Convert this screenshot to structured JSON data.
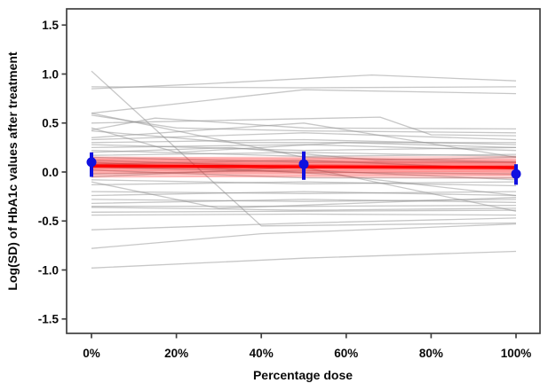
{
  "chart_data": {
    "type": "line",
    "title": "",
    "xlabel": "Percentage dose",
    "ylabel": "Log(SD) of HbA1c values after treatment",
    "x_ticks": [
      {
        "pct": 0,
        "label": "0%"
      },
      {
        "pct": 20,
        "label": "20%"
      },
      {
        "pct": 40,
        "label": "40%"
      },
      {
        "pct": 60,
        "label": "60%"
      },
      {
        "pct": 80,
        "label": "80%"
      },
      {
        "pct": 100,
        "label": "100%"
      }
    ],
    "y_ticks": [
      {
        "v": 1.5,
        "label": "1.5"
      },
      {
        "v": 1.0,
        "label": "1.0"
      },
      {
        "v": 0.5,
        "label": "0.5"
      },
      {
        "v": 0.0,
        "label": "0.0"
      },
      {
        "v": -0.5,
        "label": "-0.5"
      },
      {
        "v": -1.0,
        "label": "-1.0"
      },
      {
        "v": -1.5,
        "label": "-1.5"
      }
    ],
    "xlim_pct": [
      -5.9,
      105.6
    ],
    "ylim": [
      -1.66,
      1.66
    ],
    "grid": false,
    "legend": null,
    "colors": {
      "study_line": "#909090",
      "fit_ensemble": "#ff0000",
      "fit_center": "#ff0000",
      "summary_point": "#1010e0",
      "axis": "#404040",
      "text": "#0a0a0a",
      "background": "#ffffff"
    },
    "series": {
      "gray_study_lines": [
        [
          [
            0,
            1.03
          ],
          [
            40,
            -0.55
          ],
          [
            100,
            -0.52
          ]
        ],
        [
          [
            0,
            0.85
          ],
          [
            27,
            0.9
          ],
          [
            66,
            0.99
          ],
          [
            100,
            0.93
          ]
        ],
        [
          [
            0,
            0.87
          ],
          [
            50,
            0.86
          ],
          [
            100,
            0.87
          ]
        ],
        [
          [
            0,
            0.6
          ],
          [
            50,
            0.84
          ],
          [
            100,
            0.8
          ]
        ],
        [
          [
            0,
            0.58
          ],
          [
            20,
            0.45
          ],
          [
            50,
            0.42
          ],
          [
            100,
            0.4
          ]
        ],
        [
          [
            0,
            0.5
          ],
          [
            68,
            0.56
          ],
          [
            80,
            0.38
          ],
          [
            100,
            0.37
          ]
        ],
        [
          [
            0,
            0.35
          ],
          [
            50,
            0.5
          ],
          [
            100,
            0.15
          ]
        ],
        [
          [
            0,
            0.43
          ],
          [
            15,
            0.55
          ],
          [
            50,
            0.45
          ],
          [
            100,
            0.44
          ]
        ],
        [
          [
            0,
            0.6
          ],
          [
            50,
            0.15
          ],
          [
            100,
            0.1
          ]
        ],
        [
          [
            0,
            0.42
          ],
          [
            33,
            0.3
          ],
          [
            100,
            0.3
          ]
        ],
        [
          [
            0,
            0.33
          ],
          [
            50,
            0.4
          ],
          [
            100,
            0.33
          ]
        ],
        [
          [
            0,
            0.3
          ],
          [
            50,
            0.33
          ],
          [
            100,
            0.28
          ]
        ],
        [
          [
            0,
            0.28
          ],
          [
            50,
            0.22
          ],
          [
            100,
            0.25
          ]
        ],
        [
          [
            0,
            0.25
          ],
          [
            50,
            0.28
          ],
          [
            100,
            0.22
          ]
        ],
        [
          [
            0,
            0.22
          ],
          [
            50,
            0.16
          ],
          [
            100,
            0.18
          ]
        ],
        [
          [
            0,
            0.2
          ],
          [
            33,
            0.25
          ],
          [
            67,
            0.12
          ],
          [
            100,
            0.15
          ]
        ],
        [
          [
            0,
            0.17
          ],
          [
            50,
            0.2
          ],
          [
            100,
            0.16
          ]
        ],
        [
          [
            0,
            0.15
          ],
          [
            50,
            0.1
          ],
          [
            100,
            0.1
          ]
        ],
        [
          [
            0,
            0.12
          ],
          [
            50,
            0.05
          ],
          [
            100,
            0.06
          ]
        ],
        [
          [
            0,
            0.08
          ],
          [
            50,
            0.12
          ],
          [
            100,
            0.03
          ]
        ],
        [
          [
            0,
            0.05
          ],
          [
            50,
            0.0
          ],
          [
            100,
            -0.02
          ]
        ],
        [
          [
            0,
            0.02
          ],
          [
            50,
            -0.06
          ],
          [
            100,
            -0.06
          ]
        ],
        [
          [
            0,
            -0.02
          ],
          [
            50,
            0.02
          ],
          [
            100,
            -0.08
          ]
        ],
        [
          [
            0,
            -0.05
          ],
          [
            50,
            0.05
          ],
          [
            100,
            -0.4
          ]
        ],
        [
          [
            0,
            0.1
          ],
          [
            55,
            -0.02
          ],
          [
            100,
            -0.24
          ]
        ],
        [
          [
            0,
            -0.08
          ],
          [
            50,
            -0.12
          ],
          [
            100,
            -0.1
          ]
        ],
        [
          [
            0,
            -0.1
          ],
          [
            30,
            -0.37
          ],
          [
            100,
            -0.26
          ]
        ],
        [
          [
            0,
            -0.13
          ],
          [
            50,
            -0.1
          ],
          [
            100,
            -0.14
          ]
        ],
        [
          [
            0,
            -0.2
          ],
          [
            50,
            -0.22
          ],
          [
            100,
            -0.2
          ]
        ],
        [
          [
            0,
            -0.24
          ],
          [
            50,
            -0.2
          ],
          [
            100,
            -0.24
          ]
        ],
        [
          [
            0,
            -0.28
          ],
          [
            50,
            -0.3
          ],
          [
            100,
            -0.28
          ]
        ],
        [
          [
            0,
            -0.32
          ],
          [
            50,
            -0.28
          ],
          [
            100,
            -0.31
          ]
        ],
        [
          [
            0,
            -0.35
          ],
          [
            50,
            -0.35
          ],
          [
            100,
            -0.34
          ]
        ],
        [
          [
            0,
            -0.36
          ],
          [
            50,
            -0.39
          ],
          [
            100,
            -0.37
          ]
        ],
        [
          [
            0,
            -0.41
          ],
          [
            50,
            -0.4
          ],
          [
            100,
            -0.39
          ]
        ],
        [
          [
            0,
            -0.44
          ],
          [
            50,
            -0.43
          ],
          [
            100,
            -0.44
          ]
        ],
        [
          [
            0,
            -0.59
          ],
          [
            50,
            -0.52
          ],
          [
            100,
            -0.47
          ]
        ],
        [
          [
            0,
            -0.78
          ],
          [
            40,
            -0.63
          ],
          [
            100,
            -0.53
          ]
        ],
        [
          [
            0,
            -0.98
          ],
          [
            50,
            -0.88
          ],
          [
            100,
            -0.81
          ]
        ],
        [
          [
            0,
            0.45
          ],
          [
            20,
            0.2
          ],
          [
            60,
            0.3
          ],
          [
            100,
            0.25
          ]
        ]
      ],
      "red_fit_ensemble": [
        [
          0.15,
          0.12
        ],
        [
          0.14,
          0.155
        ],
        [
          0.13,
          0.1
        ],
        [
          0.125,
          0.135
        ],
        [
          0.115,
          0.09
        ],
        [
          0.11,
          0.12
        ],
        [
          0.1,
          0.07
        ],
        [
          0.095,
          0.105
        ],
        [
          0.09,
          0.05
        ],
        [
          0.085,
          0.095
        ],
        [
          0.08,
          0.06
        ],
        [
          0.075,
          0.085
        ],
        [
          0.07,
          0.04
        ],
        [
          0.065,
          0.075
        ],
        [
          0.06,
          0.03
        ],
        [
          0.055,
          0.065
        ],
        [
          0.05,
          0.02
        ],
        [
          0.045,
          0.055
        ],
        [
          0.04,
          0.005
        ],
        [
          0.035,
          0.045
        ],
        [
          0.025,
          -0.01
        ],
        [
          0.02,
          0.03
        ],
        [
          0.01,
          -0.025
        ],
        [
          0.0,
          0.015
        ],
        [
          -0.01,
          -0.04
        ],
        [
          -0.02,
          0.0
        ],
        [
          -0.035,
          -0.06
        ],
        [
          -0.05,
          -0.025
        ]
      ],
      "red_fit_center": [
        [
          0,
          0.062
        ],
        [
          100,
          0.045
        ]
      ],
      "blue_summary_points": [
        {
          "x": 0,
          "y": 0.1,
          "ci_low": -0.05,
          "ci_high": 0.2
        },
        {
          "x": 50,
          "y": 0.08,
          "ci_low": -0.08,
          "ci_high": 0.21
        },
        {
          "x": 100,
          "y": -0.02,
          "ci_low": -0.13,
          "ci_high": 0.08
        }
      ]
    }
  }
}
